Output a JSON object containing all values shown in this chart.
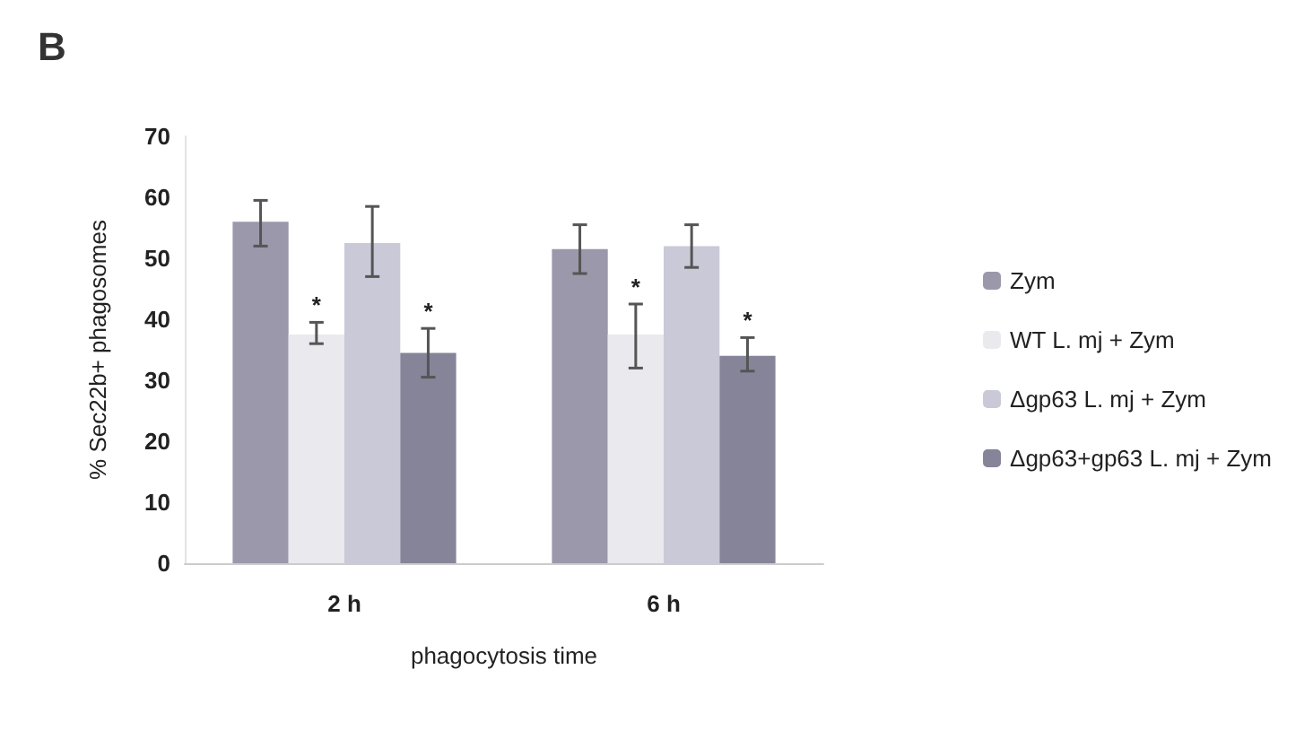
{
  "chart_data": {
    "type": "bar",
    "title": "B",
    "xlabel": "phagocytosis time",
    "ylabel": "% Sec22b+ phagosomes",
    "categories": [
      "2 h",
      "6 h"
    ],
    "series": [
      {
        "name": "Zym",
        "color": "#9a98aa",
        "values": [
          56,
          51.5
        ],
        "errors": [
          [
            52,
            59.5
          ],
          [
            47.5,
            55.5
          ]
        ]
      },
      {
        "name": "WT L. mj + Zym",
        "color": "#e9e9ee",
        "values": [
          37.5,
          37.5
        ],
        "errors": [
          [
            36,
            39.5
          ],
          [
            32,
            42.5
          ]
        ],
        "value_labels": [
          "*",
          "*"
        ]
      },
      {
        "name": "Δgp63 L. mj + Zym",
        "color": "#c9c9d8",
        "values": [
          52.5,
          52
        ],
        "errors": [
          [
            47,
            58.5
          ],
          [
            48.5,
            55.5
          ]
        ]
      },
      {
        "name": "Δgp63+gp63 L. mj + Zym",
        "color": "#858499",
        "values": [
          34.5,
          34
        ],
        "errors": [
          [
            30.5,
            38.5
          ],
          [
            31.5,
            37
          ]
        ],
        "value_labels": [
          "*",
          "*"
        ]
      }
    ],
    "ylim": [
      0,
      70
    ],
    "yticks": [
      0,
      10,
      20,
      30,
      40,
      50,
      60,
      70
    ],
    "grid": false,
    "legend": "right"
  }
}
